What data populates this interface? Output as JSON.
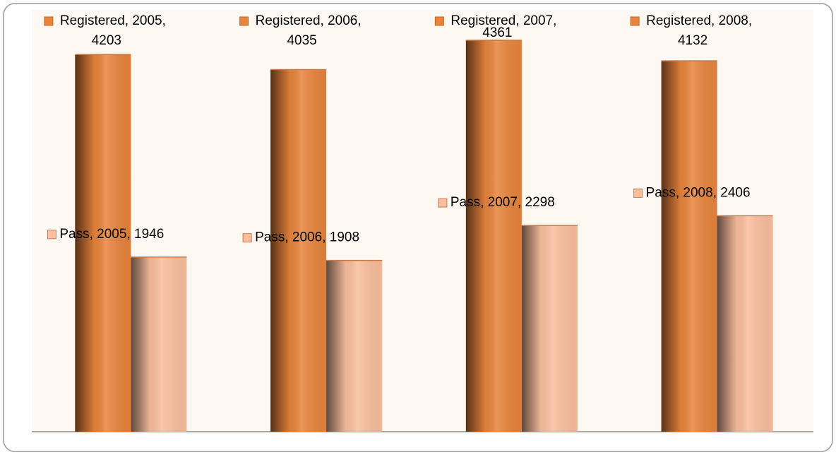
{
  "chart_data": {
    "type": "bar",
    "categories": [
      "2005",
      "2006",
      "2007",
      "2008"
    ],
    "series": [
      {
        "name": "Registered",
        "color": "#e8843c",
        "values": [
          4203,
          4035,
          4361,
          4132
        ],
        "value_labels": [
          "Registered, 2005, 4203",
          "Registered, 2006, 4035",
          "Registered, 2007, 4361",
          "Registered, 2008, 4132"
        ]
      },
      {
        "name": "Pass",
        "color": "#fbbf9e",
        "values": [
          1946,
          1908,
          2298,
          2406
        ],
        "value_labels": [
          "Pass, 2005, 1946",
          "Pass, 2006, 1908",
          "Pass, 2007, 2298",
          "Pass, 2008, 2406"
        ]
      }
    ],
    "ylim": [
      0,
      4700
    ]
  }
}
